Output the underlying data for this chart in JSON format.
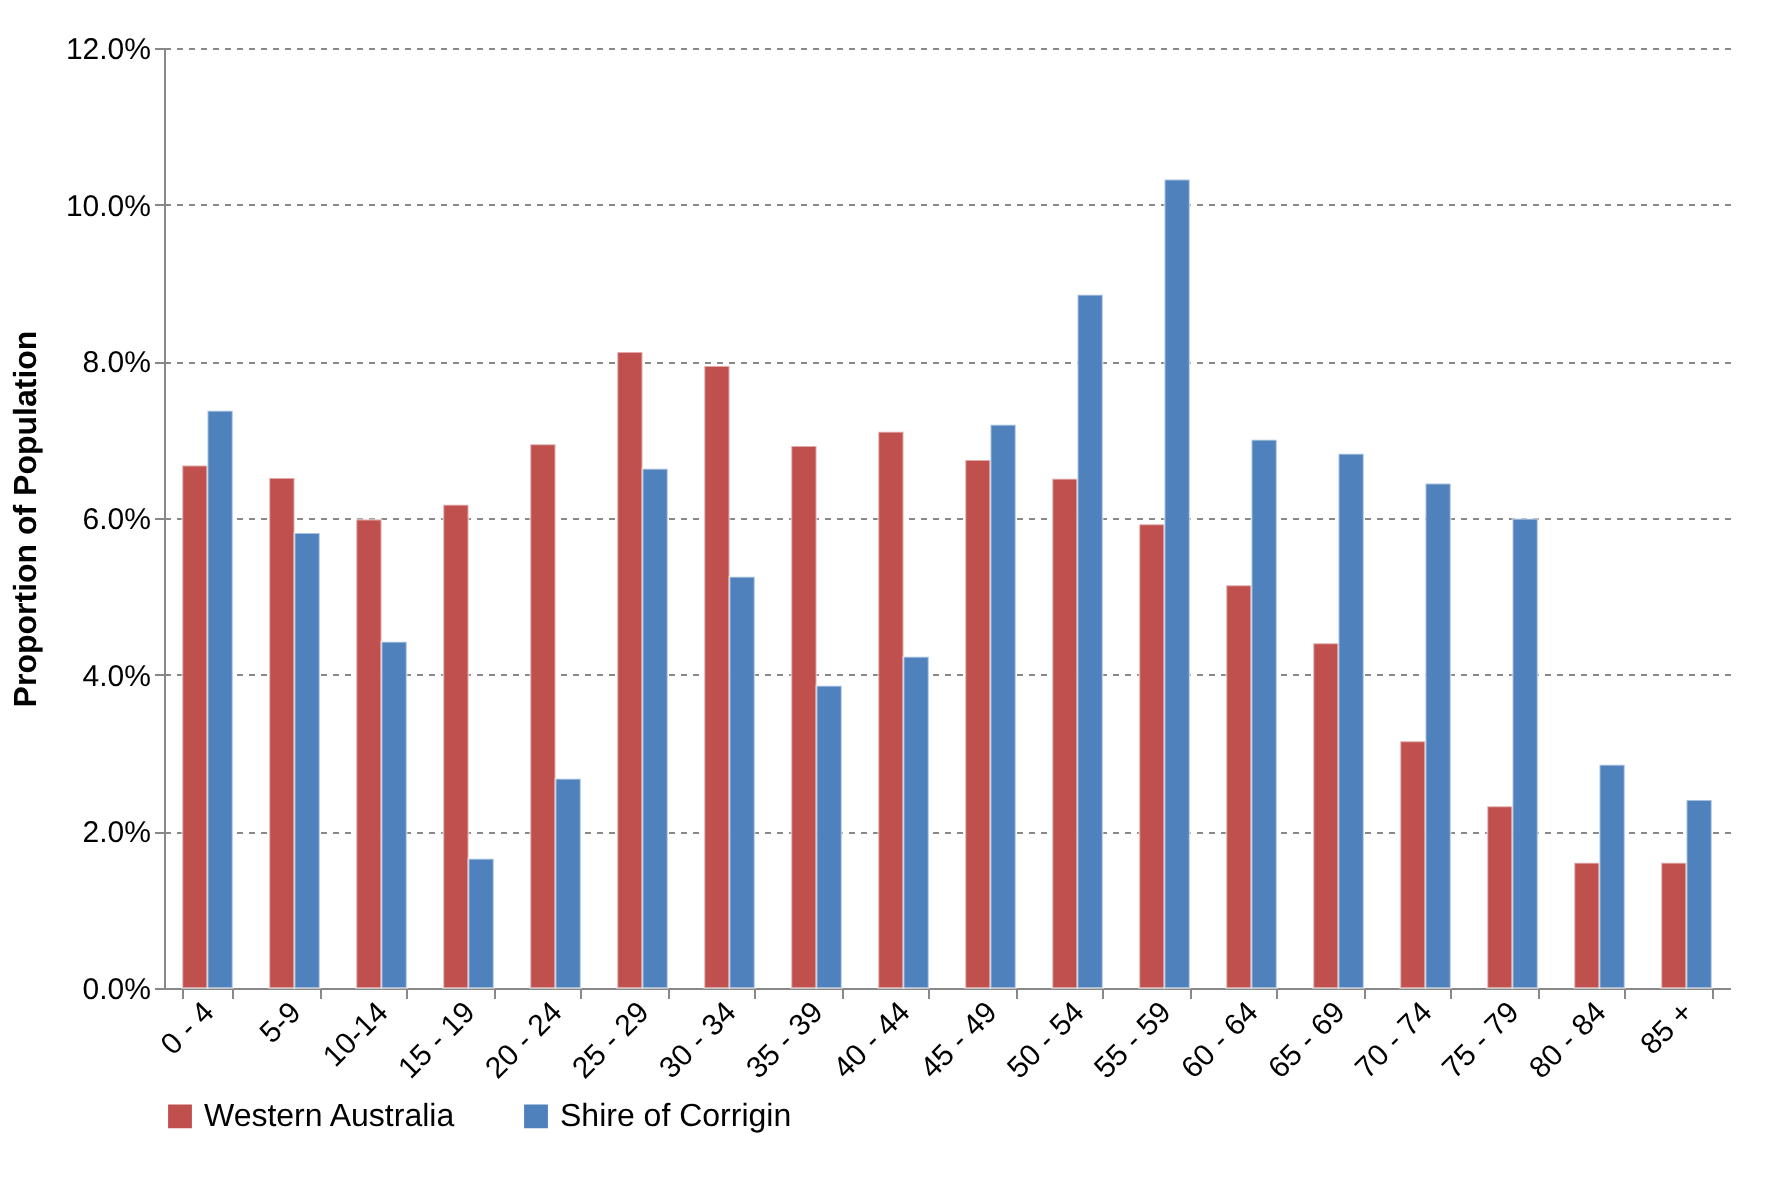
{
  "chart_data": {
    "type": "bar",
    "ylabel": "Proportion of Population",
    "categories": [
      "0 - 4",
      "5-9",
      "10-14",
      "15 - 19",
      "20 - 24",
      "25 - 29",
      "30 - 34",
      "35 - 39",
      "40 - 44",
      "45 - 49",
      "50 - 54",
      "55 - 59",
      "60 - 64",
      "65 - 69",
      "70 - 74",
      "75 - 79",
      "80 - 84",
      "85 +"
    ],
    "series": [
      {
        "name": "Western Australia",
        "color": "#c0504d",
        "values": [
          6.67,
          6.51,
          5.98,
          6.17,
          6.94,
          8.12,
          7.94,
          6.92,
          7.1,
          6.74,
          6.5,
          5.92,
          5.14,
          4.4,
          3.15,
          2.32,
          1.6,
          1.6
        ]
      },
      {
        "name": "Shire of Corrigin",
        "color": "#4f81bd",
        "values": [
          7.37,
          5.81,
          4.42,
          1.65,
          2.67,
          6.63,
          5.25,
          3.86,
          4.23,
          7.19,
          8.85,
          10.32,
          7.0,
          6.82,
          6.44,
          5.99,
          2.85,
          2.4
        ]
      }
    ],
    "ylim": [
      0,
      12
    ],
    "yticks": [
      {
        "value": 0,
        "label": "0.0%"
      },
      {
        "value": 2,
        "label": "2.0%"
      },
      {
        "value": 4,
        "label": "4.0%"
      },
      {
        "value": 6,
        "label": "6.0%"
      },
      {
        "value": 8,
        "label": "8.0%"
      },
      {
        "value": 10,
        "label": "10.0%"
      },
      {
        "value": 12,
        "label": "12.0%"
      }
    ],
    "grid": "y",
    "legend": "bottom"
  }
}
